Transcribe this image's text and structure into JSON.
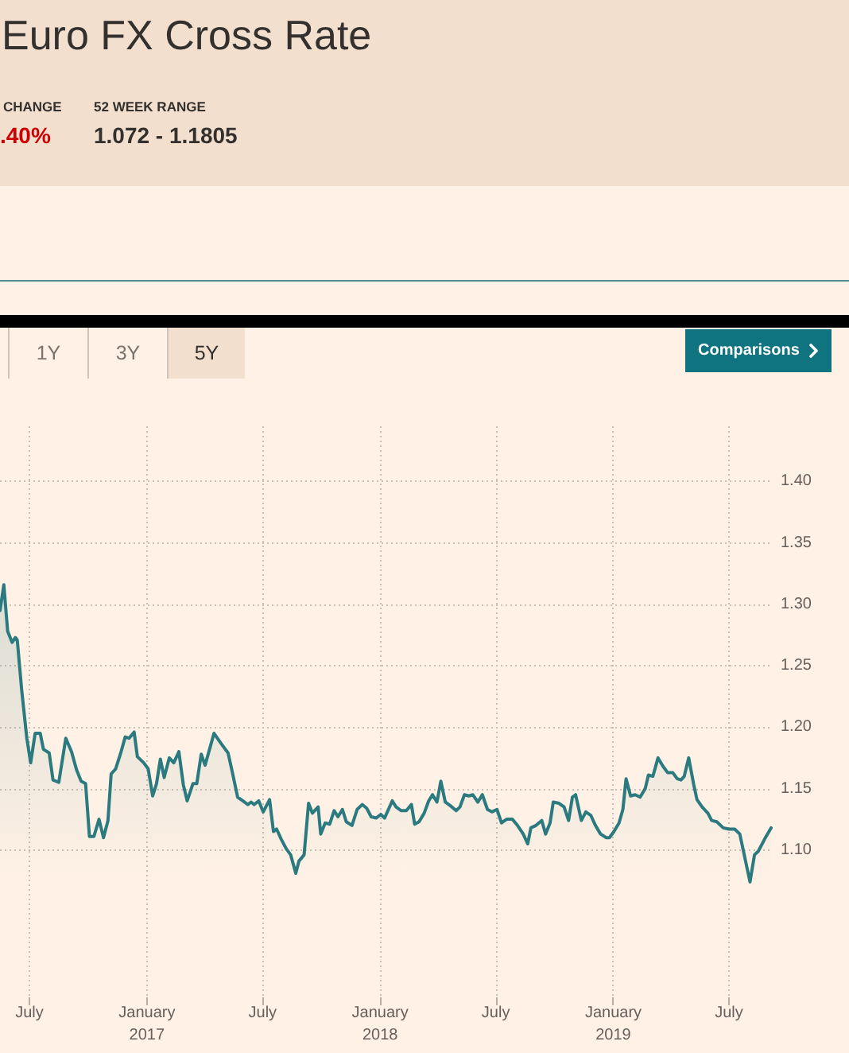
{
  "chart_data": {
    "type": "area",
    "title": "Euro FX Cross Rate",
    "annotations": [
      "CHANGE",
      ".40%",
      "52 WEEK RANGE",
      "1.072 - 1.1805",
      "1Y",
      "3Y",
      "5Y",
      "Comparisons"
    ],
    "x": [
      "2016-05-16",
      "2016-05-22",
      "2016-05-28",
      "2016-06-04",
      "2016-06-09",
      "2016-06-12",
      "2016-06-19",
      "2016-06-27",
      "2016-07-03",
      "2016-07-10",
      "2016-07-18",
      "2016-07-23",
      "2016-08-01",
      "2016-08-07",
      "2016-08-16",
      "2016-08-27",
      "2016-09-05",
      "2016-09-13",
      "2016-09-20",
      "2016-09-27",
      "2016-10-03",
      "2016-10-10",
      "2016-10-18",
      "2016-10-25",
      "2016-11-01",
      "2016-11-06",
      "2016-11-13",
      "2016-11-21",
      "2016-11-28",
      "2016-12-04",
      "2016-12-12",
      "2016-12-17",
      "2016-12-27",
      "2017-01-03",
      "2017-01-10",
      "2017-01-16",
      "2017-01-22",
      "2017-01-28",
      "2017-02-05",
      "2017-02-12",
      "2017-02-20",
      "2017-02-27",
      "2017-03-05",
      "2017-03-14",
      "2017-03-20",
      "2017-03-27",
      "2017-04-02",
      "2017-04-09",
      "2017-04-16",
      "2017-04-28",
      "2017-05-08",
      "2017-05-14",
      "2017-05-23",
      "2017-05-31",
      "2017-06-08",
      "2017-06-13",
      "2017-06-18",
      "2017-06-25",
      "2017-07-02",
      "2017-07-12",
      "2017-07-18",
      "2017-07-23",
      "2017-07-30",
      "2017-08-07",
      "2017-08-14",
      "2017-08-22",
      "2017-08-27",
      "2017-09-04",
      "2017-09-11",
      "2017-09-17",
      "2017-09-26",
      "2017-09-30",
      "2017-10-07",
      "2017-10-14",
      "2017-10-21",
      "2017-10-27",
      "2017-11-03",
      "2017-11-09",
      "2017-11-18",
      "2017-11-26",
      "2017-12-04",
      "2017-12-11",
      "2017-12-18",
      "2017-12-26",
      "2018-01-02",
      "2018-01-08",
      "2018-01-20",
      "2018-01-26",
      "2018-02-03",
      "2018-02-11",
      "2018-02-19",
      "2018-02-24",
      "2018-03-03",
      "2018-03-11",
      "2018-03-18",
      "2018-03-24",
      "2018-03-31",
      "2018-04-06",
      "2018-04-13",
      "2018-04-21",
      "2018-04-30",
      "2018-05-06",
      "2018-05-13",
      "2018-05-20",
      "2018-05-26",
      "2018-06-03",
      "2018-06-10",
      "2018-06-18",
      "2018-06-25",
      "2018-07-03",
      "2018-07-10",
      "2018-07-18",
      "2018-07-27",
      "2018-08-04",
      "2018-08-13",
      "2018-08-20",
      "2018-08-25",
      "2018-09-02",
      "2018-09-11",
      "2018-09-17",
      "2018-09-24",
      "2018-09-29",
      "2018-10-08",
      "2018-10-16",
      "2018-10-23",
      "2018-10-29",
      "2018-11-03",
      "2018-11-12",
      "2018-11-19",
      "2018-11-27",
      "2018-12-04",
      "2018-12-12",
      "2018-12-21",
      "2018-12-26",
      "2019-01-02",
      "2019-01-10",
      "2019-01-16",
      "2019-01-21",
      "2019-01-28",
      "2019-02-04",
      "2019-02-12",
      "2019-02-20",
      "2019-02-25",
      "2019-03-04",
      "2019-03-12",
      "2019-03-20",
      "2019-03-27",
      "2019-04-04",
      "2019-04-11",
      "2019-04-17",
      "2019-04-22",
      "2019-04-29",
      "2019-05-07",
      "2019-05-12",
      "2019-05-20",
      "2019-05-29",
      "2019-06-04",
      "2019-06-12",
      "2019-06-22",
      "2019-07-01",
      "2019-07-10",
      "2019-07-18",
      "2019-08-03",
      "2019-08-10",
      "2019-08-16",
      "2019-08-26",
      "2019-09-05"
    ],
    "series": [
      {
        "color": "#2a7a80",
        "values": [
          1.295,
          1.316,
          1.278,
          1.269,
          1.273,
          1.271,
          1.23,
          1.191,
          1.171,
          1.195,
          1.195,
          1.182,
          1.179,
          1.157,
          1.155,
          1.191,
          1.18,
          1.165,
          1.156,
          1.154,
          1.111,
          1.111,
          1.125,
          1.11,
          1.124,
          1.162,
          1.166,
          1.179,
          1.192,
          1.191,
          1.196,
          1.176,
          1.171,
          1.166,
          1.144,
          1.154,
          1.174,
          1.159,
          1.175,
          1.171,
          1.18,
          1.153,
          1.14,
          1.154,
          1.154,
          1.178,
          1.169,
          1.182,
          1.195,
          1.186,
          1.179,
          1.165,
          1.143,
          1.14,
          1.137,
          1.139,
          1.137,
          1.14,
          1.131,
          1.141,
          1.115,
          1.117,
          1.109,
          1.101,
          1.096,
          1.081,
          1.091,
          1.096,
          1.138,
          1.13,
          1.135,
          1.113,
          1.122,
          1.121,
          1.132,
          1.127,
          1.133,
          1.123,
          1.12,
          1.133,
          1.137,
          1.134,
          1.127,
          1.126,
          1.129,
          1.126,
          1.14,
          1.135,
          1.132,
          1.132,
          1.137,
          1.121,
          1.123,
          1.13,
          1.14,
          1.145,
          1.139,
          1.156,
          1.139,
          1.136,
          1.132,
          1.135,
          1.145,
          1.144,
          1.145,
          1.139,
          1.145,
          1.133,
          1.131,
          1.133,
          1.122,
          1.125,
          1.125,
          1.12,
          1.113,
          1.105,
          1.118,
          1.12,
          1.124,
          1.113,
          1.122,
          1.139,
          1.138,
          1.135,
          1.124,
          1.143,
          1.145,
          1.124,
          1.131,
          1.128,
          1.12,
          1.113,
          1.11,
          1.11,
          1.115,
          1.122,
          1.133,
          1.158,
          1.144,
          1.145,
          1.143,
          1.15,
          1.161,
          1.16,
          1.175,
          1.168,
          1.163,
          1.163,
          1.158,
          1.157,
          1.16,
          1.175,
          1.153,
          1.141,
          1.135,
          1.13,
          1.124,
          1.123,
          1.118,
          1.117,
          1.117,
          1.113,
          1.074,
          1.096,
          1.099,
          1.109,
          1.118
        ]
      }
    ],
    "xlim": [
      "2016-05-16",
      "2019-09-05"
    ],
    "xticks": [
      {
        "value": "2016-07-01",
        "label": "July"
      },
      {
        "value": "2017-01-01",
        "label": "January\n2017"
      },
      {
        "value": "2017-07-01",
        "label": "July"
      },
      {
        "value": "2018-01-01",
        "label": "January\n2018"
      },
      {
        "value": "2018-07-01",
        "label": "July"
      },
      {
        "value": "2019-01-01",
        "label": "January\n2019"
      },
      {
        "value": "2019-07-01",
        "label": "July"
      }
    ],
    "ylim": [
      0.98,
      1.445
    ],
    "yticks": [
      {
        "value": 1.1,
        "label": "1.10"
      },
      {
        "value": 1.15,
        "label": "1.15"
      },
      {
        "value": 1.2,
        "label": "1.20"
      },
      {
        "value": 1.25,
        "label": "1.25"
      },
      {
        "value": 1.3,
        "label": "1.30"
      },
      {
        "value": 1.35,
        "label": "1.35"
      },
      {
        "value": 1.4,
        "label": "1.40"
      }
    ],
    "grid": true,
    "marker": "none"
  }
}
